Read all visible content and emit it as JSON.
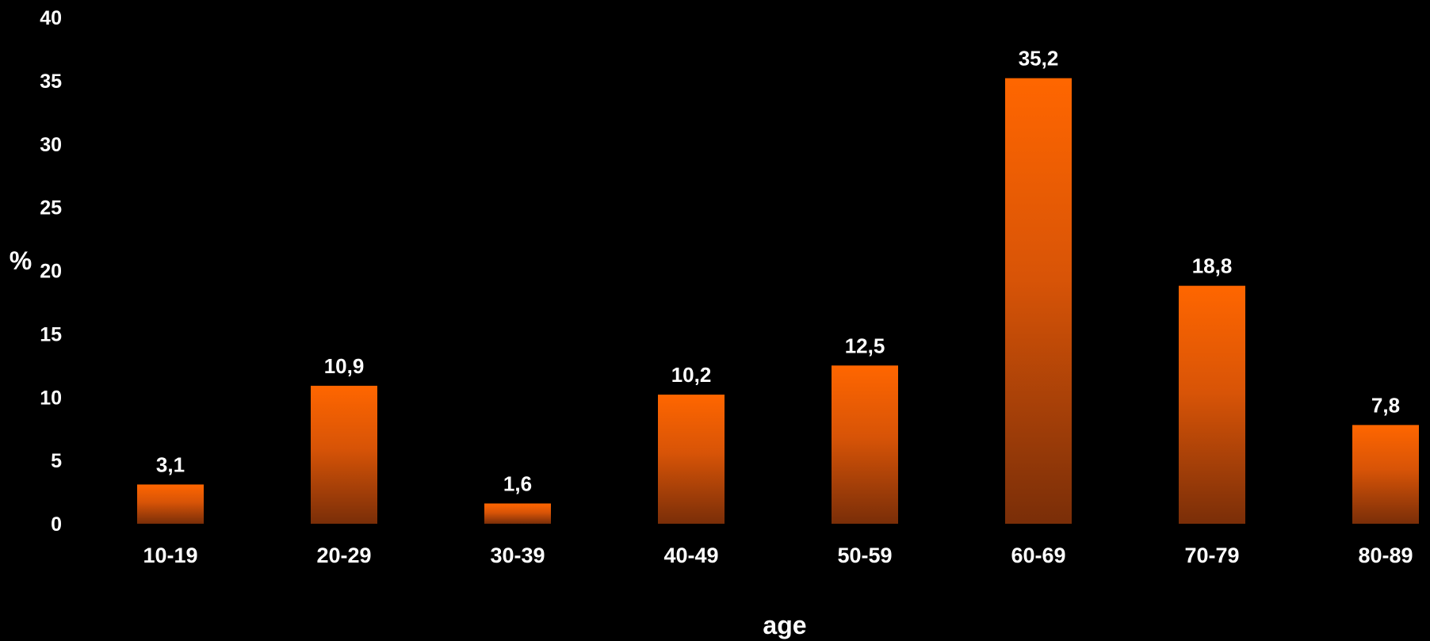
{
  "chart_data": {
    "type": "bar",
    "categories": [
      "10-19",
      "20-29",
      "30-39",
      "40-49",
      "50-59",
      "60-69",
      "70-79",
      "80-89"
    ],
    "values": [
      3.1,
      10.9,
      1.6,
      10.2,
      12.5,
      35.2,
      18.8,
      7.8
    ],
    "data_labels": [
      "3,1",
      "10,9",
      "1,6",
      "10,2",
      "12,5",
      "35,2",
      "18,8",
      "7,8"
    ],
    "yticks": [
      "0",
      "5",
      "10",
      "15",
      "20",
      "25",
      "30",
      "35",
      "40"
    ],
    "ylim": [
      0,
      40
    ],
    "xlabel": "age",
    "ylabel": "%",
    "title": "",
    "grid": false,
    "legend": "none",
    "colors": {
      "background": "#000000",
      "bar_top": "#FF6600",
      "bar_bottom": "#7A2E08",
      "text": "#FFFFFF"
    }
  }
}
